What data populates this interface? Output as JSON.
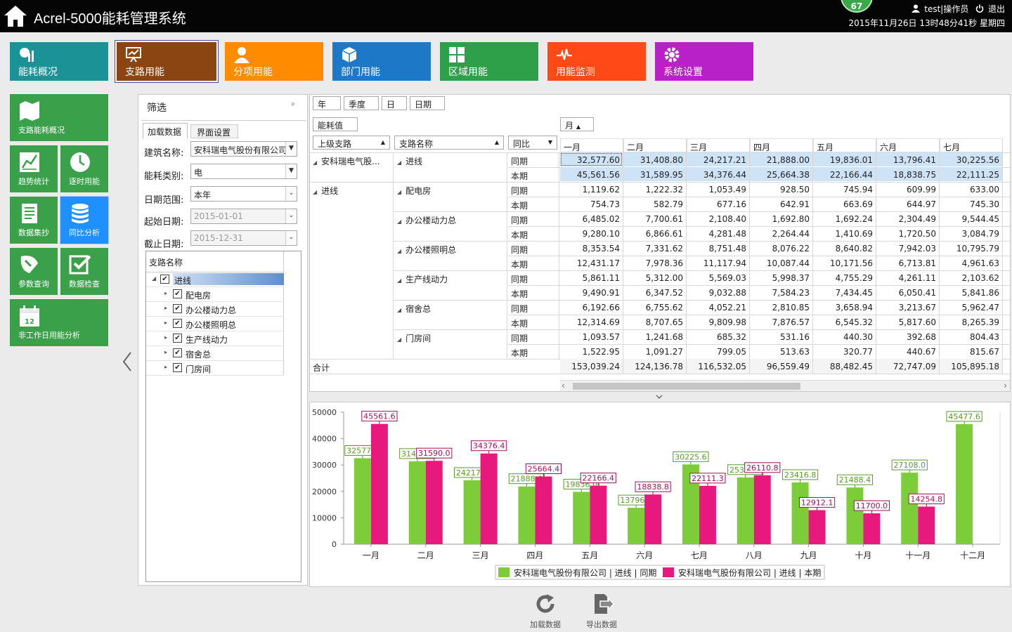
{
  "header": {
    "title": "Acrel-5000能耗管理系统",
    "badge": "67",
    "user": "test|操作员",
    "logout": "退出",
    "datetime": "2015年11月26日 13时48分41秒 星期四"
  },
  "modules": [
    {
      "label": "能耗概况",
      "color": "#1a9296",
      "icon": "chart-pie-icon"
    },
    {
      "label": "支路用能",
      "color": "#8b4513",
      "icon": "trend-board-icon",
      "active": true
    },
    {
      "label": "分项用能",
      "color": "#ff8c00",
      "icon": "user-icon"
    },
    {
      "label": "部门用能",
      "color": "#1e78c8",
      "icon": "cube-icon"
    },
    {
      "label": "区域用能",
      "color": "#2ea04a",
      "icon": "grid-icon"
    },
    {
      "label": "用能监测",
      "color": "#ff4a17",
      "icon": "pulse-icon"
    },
    {
      "label": "系统设置",
      "color": "#b820c8",
      "icon": "gear-icon"
    }
  ],
  "tiles": [
    {
      "label": "支路能耗概况",
      "icon": "map-icon"
    },
    {
      "label": "趋势统计",
      "icon": "trend-icon"
    },
    {
      "label": "逐时用能",
      "icon": "clock-icon"
    },
    {
      "label": "数据集抄",
      "icon": "document-icon"
    },
    {
      "label": "同比分析",
      "icon": "database-icon",
      "active": true
    },
    {
      "label": "参数查询",
      "icon": "search-icon"
    },
    {
      "label": "数据检查",
      "icon": "check-icon"
    },
    {
      "label": "非工作日用能分析",
      "icon": "calendar-icon",
      "calendar_day": "12"
    }
  ],
  "filter": {
    "title": "筛选",
    "pin": "ᵖ",
    "tabs": [
      "加载数据",
      "界面设置"
    ],
    "building_label": "建筑名称:",
    "building_value": "安科瑞电气股份有限公司",
    "energy_label": "能耗类别:",
    "energy_value": "电",
    "range_label": "日期范围:",
    "range_value": "本年",
    "start_label": "起始日期:",
    "start_value": "2015-01-01",
    "end_label": "截止日期:",
    "end_value": "2015-12-31",
    "tree_header": "支路名称",
    "tree": [
      {
        "label": "进线",
        "level": 0,
        "checked": true,
        "expanded": true,
        "selected": true
      },
      {
        "label": "配电房",
        "level": 1,
        "checked": true
      },
      {
        "label": "办公楼动力总",
        "level": 1,
        "checked": true
      },
      {
        "label": "办公楼照明总",
        "level": 1,
        "checked": true
      },
      {
        "label": "生产线动力",
        "level": 1,
        "checked": true
      },
      {
        "label": "宿舍总",
        "level": 1,
        "checked": true
      },
      {
        "label": "门房间",
        "level": 1,
        "checked": true
      }
    ]
  },
  "grid": {
    "period_fields": [
      "年",
      "季度",
      "日",
      "日期"
    ],
    "value_field": "能耗值",
    "month_field": "月",
    "col_headers": [
      "上级支路",
      "支路名称",
      "同比"
    ],
    "months": [
      "一月",
      "二月",
      "三月",
      "四月",
      "五月",
      "六月",
      "七月"
    ],
    "groups": [
      {
        "parent": "安科瑞电气股...",
        "branches": [
          {
            "name": "进线",
            "rows": [
              {
                "label": "同期",
                "values": [
                  "32,577.60",
                  "31,408.80",
                  "24,217.21",
                  "21,888.00",
                  "19,836.01",
                  "13,796.41",
                  "30,225.56"
                ]
              },
              {
                "label": "本期",
                "values": [
                  "45,561.56",
                  "31,589.95",
                  "34,376.44",
                  "25,664.38",
                  "22,166.44",
                  "18,838.75",
                  "22,111.25"
                ]
              }
            ]
          }
        ]
      },
      {
        "parent": "进线",
        "branches": [
          {
            "name": "配电房",
            "rows": [
              {
                "label": "同期",
                "values": [
                  "1,119.62",
                  "1,222.32",
                  "1,053.49",
                  "928.50",
                  "745.94",
                  "609.99",
                  "633.00"
                ]
              },
              {
                "label": "本期",
                "values": [
                  "754.73",
                  "582.79",
                  "677.16",
                  "642.91",
                  "663.69",
                  "644.97",
                  "745.30"
                ]
              }
            ]
          },
          {
            "name": "办公楼动力总",
            "rows": [
              {
                "label": "同期",
                "values": [
                  "6,485.02",
                  "7,700.61",
                  "2,108.40",
                  "1,692.80",
                  "1,692.24",
                  "2,304.49",
                  "9,544.45"
                ]
              },
              {
                "label": "本期",
                "values": [
                  "9,280.10",
                  "6,866.61",
                  "4,281.48",
                  "2,264.44",
                  "1,410.69",
                  "1,720.50",
                  "3,084.79"
                ]
              }
            ]
          },
          {
            "name": "办公楼照明总",
            "rows": [
              {
                "label": "同期",
                "values": [
                  "8,353.54",
                  "7,331.62",
                  "8,751.48",
                  "8,076.22",
                  "8,640.82",
                  "7,942.03",
                  "10,795.79"
                ]
              },
              {
                "label": "本期",
                "values": [
                  "12,431.17",
                  "7,978.36",
                  "11,117.94",
                  "10,087.44",
                  "10,171.56",
                  "6,713.81",
                  "4,961.63"
                ]
              }
            ]
          },
          {
            "name": "生产线动力",
            "rows": [
              {
                "label": "同期",
                "values": [
                  "5,861.11",
                  "5,312.00",
                  "5,569.03",
                  "5,998.37",
                  "4,755.29",
                  "4,261.11",
                  "2,103.62"
                ]
              },
              {
                "label": "本期",
                "values": [
                  "9,490.91",
                  "6,347.52",
                  "9,032.88",
                  "7,584.23",
                  "7,434.45",
                  "6,050.41",
                  "5,841.86"
                ]
              }
            ]
          },
          {
            "name": "宿舍总",
            "rows": [
              {
                "label": "同期",
                "values": [
                  "6,192.66",
                  "6,755.62",
                  "4,052.21",
                  "2,810.85",
                  "3,658.94",
                  "3,213.67",
                  "5,962.47"
                ]
              },
              {
                "label": "本期",
                "values": [
                  "12,314.69",
                  "8,707.65",
                  "9,809.98",
                  "7,876.57",
                  "6,545.32",
                  "5,817.60",
                  "8,265.39"
                ]
              }
            ]
          },
          {
            "name": "门房间",
            "rows": [
              {
                "label": "同期",
                "values": [
                  "1,093.57",
                  "1,241.68",
                  "685.32",
                  "531.16",
                  "440.30",
                  "392.68",
                  "804.43"
                ]
              },
              {
                "label": "本期",
                "values": [
                  "1,522.95",
                  "1,091.27",
                  "799.05",
                  "513.63",
                  "320.77",
                  "440.67",
                  "815.67"
                ]
              }
            ]
          }
        ]
      }
    ],
    "total_label": "合计",
    "totals": [
      "153,039.24",
      "124,136.78",
      "116,532.05",
      "96,559.49",
      "88,482.45",
      "72,747.09",
      "105,895.18"
    ]
  },
  "chart_data": {
    "type": "bar",
    "categories": [
      "一月",
      "二月",
      "三月",
      "四月",
      "五月",
      "六月",
      "七月",
      "八月",
      "九月",
      "十月",
      "十一月",
      "十二月"
    ],
    "series": [
      {
        "name": "安科瑞电气股份有限公司 | 进线 | 同期",
        "color": "#7dcc3a",
        "label_color": "#5a9a2a",
        "values": [
          32577.6,
          31408.8,
          24217.2,
          21888.0,
          19836.0,
          13796.4,
          30225.6,
          25327.2,
          23416.8,
          21488.4,
          27108.0,
          45477.6
        ]
      },
      {
        "name": "安科瑞电气股份有限公司 | 进线 | 本期",
        "color": "#e8197d",
        "label_color": "#a0105a",
        "values": [
          45561.6,
          31590.0,
          34376.4,
          25664.4,
          22166.4,
          18838.8,
          22111.3,
          26110.8,
          12912.1,
          11700.0,
          14254.8,
          null
        ]
      }
    ],
    "ylim": [
      0,
      50000
    ],
    "yticks": [
      0,
      10000,
      20000,
      30000,
      40000,
      50000
    ],
    "grid": false,
    "legend": "bottom"
  },
  "actions": {
    "load": "加载数据",
    "export": "导出数据"
  }
}
